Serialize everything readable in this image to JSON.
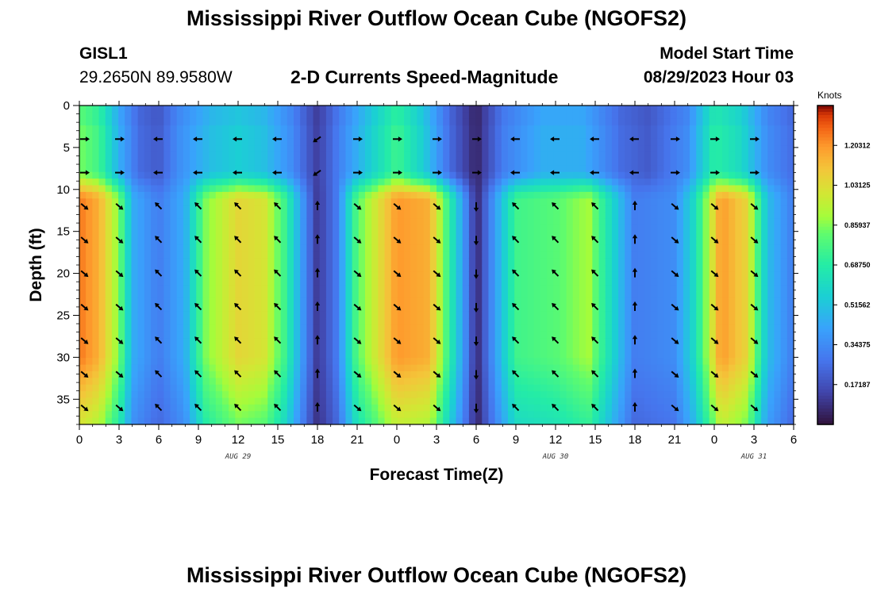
{
  "page": {
    "title_top": "Mississippi River Outflow Ocean Cube (NGOFS2)",
    "title_bottom": "Mississippi River Outflow Ocean Cube (NGOFS2)"
  },
  "station": {
    "id": "GISL1",
    "coords": "29.2650N  89.9580W"
  },
  "model": {
    "start_label": "Model Start Time",
    "start_value": "08/29/2023 Hour 03"
  },
  "chart_data": {
    "type": "heatmap",
    "title": "2-D Currents Speed-Magnitude",
    "xlabel": "Forecast Time(Z)",
    "ylabel": "Depth (ft)",
    "x_range_hours": [
      0,
      54
    ],
    "y_range_ft": [
      0,
      38
    ],
    "y_inverted": true,
    "x_tick_hours": [
      0,
      3,
      6,
      9,
      12,
      15,
      18,
      21,
      24,
      27,
      30,
      33,
      36,
      39,
      42,
      45,
      48,
      51,
      54
    ],
    "x_tick_labels": [
      "0",
      "3",
      "6",
      "9",
      "12",
      "15",
      "18",
      "21",
      "0",
      "3",
      "6",
      "9",
      "12",
      "15",
      "18",
      "21",
      "0",
      "3",
      "6"
    ],
    "y_ticks": [
      0,
      5,
      10,
      15,
      20,
      25,
      30,
      35
    ],
    "y_tick_labels": [
      "0",
      "5",
      "10",
      "15",
      "20",
      "25",
      "30",
      "35"
    ],
    "date_labels": [
      {
        "hour": 12,
        "text": "AUG 29"
      },
      {
        "hour": 36,
        "text": "AUG 30"
      },
      {
        "hour": 51,
        "text": "AUG 31"
      }
    ],
    "colorbar": {
      "unit": "Knots",
      "min": 0,
      "max": 1.375,
      "ticks": [
        0.17187,
        0.34375,
        0.51562,
        0.6875,
        0.85937,
        1.03125,
        1.20312
      ],
      "tick_labels": [
        "0.17187",
        "0.34375",
        "0.51562",
        "0.68750",
        "0.85937",
        "1.03125",
        "1.20312"
      ]
    },
    "depth_layers_ft": [
      4,
      8,
      12,
      16,
      20,
      24,
      28,
      32,
      36
    ],
    "speed_profiles": {
      "upper_layer_0_to_8ft": [
        {
          "hour": 0,
          "speed": 0.85
        },
        {
          "hour": 1.5,
          "speed": 0.75
        },
        {
          "hour": 3,
          "speed": 0.45
        },
        {
          "hour": 4.5,
          "speed": 0.25
        },
        {
          "hour": 6,
          "speed": 0.2
        },
        {
          "hour": 7.5,
          "speed": 0.35
        },
        {
          "hour": 10,
          "speed": 0.5
        },
        {
          "hour": 12,
          "speed": 0.55
        },
        {
          "hour": 14,
          "speed": 0.5
        },
        {
          "hour": 16,
          "speed": 0.35
        },
        {
          "hour": 18,
          "speed": 0.12
        },
        {
          "hour": 20,
          "speed": 0.35
        },
        {
          "hour": 22,
          "speed": 0.55
        },
        {
          "hour": 24,
          "speed": 0.75
        },
        {
          "hour": 26,
          "speed": 0.55
        },
        {
          "hour": 28,
          "speed": 0.25
        },
        {
          "hour": 30,
          "speed": 0.05
        },
        {
          "hour": 32,
          "speed": 0.3
        },
        {
          "hour": 35,
          "speed": 0.45
        },
        {
          "hour": 38,
          "speed": 0.45
        },
        {
          "hour": 41,
          "speed": 0.25
        },
        {
          "hour": 43,
          "speed": 0.2
        },
        {
          "hour": 46,
          "speed": 0.35
        },
        {
          "hour": 48,
          "speed": 0.7
        },
        {
          "hour": 50,
          "speed": 0.6
        },
        {
          "hour": 52,
          "speed": 0.35
        },
        {
          "hour": 54,
          "speed": 0.25
        }
      ],
      "lower_layer_10_to_38ft": [
        {
          "hour": 0,
          "speed": 1.25
        },
        {
          "hour": 1.5,
          "speed": 1.15
        },
        {
          "hour": 3,
          "speed": 0.85
        },
        {
          "hour": 4,
          "speed": 0.45
        },
        {
          "hour": 6,
          "speed": 0.3
        },
        {
          "hour": 8,
          "speed": 0.45
        },
        {
          "hour": 9.5,
          "speed": 0.85
        },
        {
          "hour": 12,
          "speed": 1.05
        },
        {
          "hour": 14,
          "speed": 1.0
        },
        {
          "hour": 15.5,
          "speed": 0.75
        },
        {
          "hour": 17,
          "speed": 0.35
        },
        {
          "hour": 18,
          "speed": 0.1
        },
        {
          "hour": 19.5,
          "speed": 0.3
        },
        {
          "hour": 21,
          "speed": 0.8
        },
        {
          "hour": 24,
          "speed": 1.2
        },
        {
          "hour": 26.5,
          "speed": 1.15
        },
        {
          "hour": 28,
          "speed": 0.7
        },
        {
          "hour": 29.5,
          "speed": 0.25
        },
        {
          "hour": 30,
          "speed": 0.05
        },
        {
          "hour": 31,
          "speed": 0.3
        },
        {
          "hour": 33,
          "speed": 0.75
        },
        {
          "hour": 36,
          "speed": 0.8
        },
        {
          "hour": 38.5,
          "speed": 0.9
        },
        {
          "hour": 40.5,
          "speed": 0.55
        },
        {
          "hour": 42,
          "speed": 0.3
        },
        {
          "hour": 45,
          "speed": 0.35
        },
        {
          "hour": 46.5,
          "speed": 0.6
        },
        {
          "hour": 48.5,
          "speed": 1.2
        },
        {
          "hour": 50.5,
          "speed": 1.05
        },
        {
          "hour": 52,
          "speed": 0.5
        },
        {
          "hour": 54,
          "speed": 0.3
        }
      ]
    },
    "vectors": [
      {
        "hour": 0,
        "dir_upper": "east",
        "dir_lower": "southeast"
      },
      {
        "hour": 3,
        "dir_upper": "east",
        "dir_lower": "southeast"
      },
      {
        "hour": 6,
        "dir_upper": "west",
        "dir_lower": "northwest"
      },
      {
        "hour": 9,
        "dir_upper": "west",
        "dir_lower": "northwest"
      },
      {
        "hour": 12,
        "dir_upper": "west",
        "dir_lower": "northwest"
      },
      {
        "hour": 15,
        "dir_upper": "west",
        "dir_lower": "northwest"
      },
      {
        "hour": 18,
        "dir_upper": "southwest",
        "dir_lower": "north"
      },
      {
        "hour": 21,
        "dir_upper": "east",
        "dir_lower": "southeast"
      },
      {
        "hour": 24,
        "dir_upper": "east",
        "dir_lower": "southeast"
      },
      {
        "hour": 27,
        "dir_upper": "east",
        "dir_lower": "southeast"
      },
      {
        "hour": 30,
        "dir_upper": "east",
        "dir_lower": "south"
      },
      {
        "hour": 33,
        "dir_upper": "west",
        "dir_lower": "northwest"
      },
      {
        "hour": 36,
        "dir_upper": "west",
        "dir_lower": "northwest"
      },
      {
        "hour": 39,
        "dir_upper": "west",
        "dir_lower": "northwest"
      },
      {
        "hour": 42,
        "dir_upper": "west",
        "dir_lower": "north"
      },
      {
        "hour": 45,
        "dir_upper": "east",
        "dir_lower": "southeast"
      },
      {
        "hour": 48,
        "dir_upper": "east",
        "dir_lower": "southeast"
      },
      {
        "hour": 51,
        "dir_upper": "east",
        "dir_lower": "southeast"
      }
    ]
  },
  "colors": {
    "arrow": "#000000",
    "axis": "#000000"
  }
}
